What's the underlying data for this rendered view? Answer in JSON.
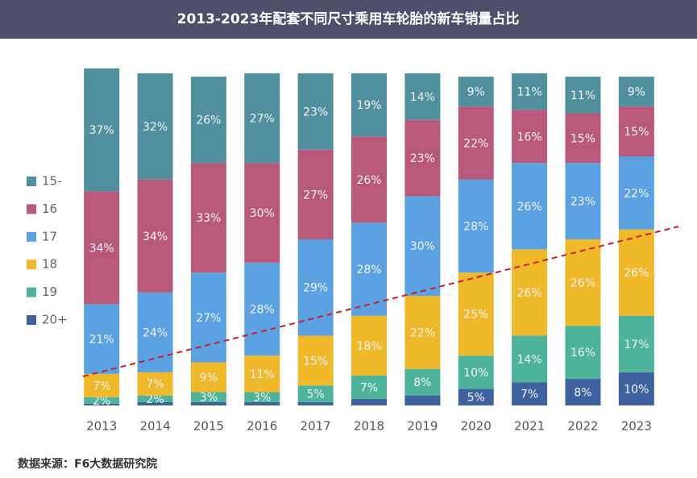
{
  "chart_data": {
    "type": "bar",
    "stacked": true,
    "title": "2013-2023年配套不同尺寸乘用车轮胎的新车销量占比",
    "source": "数据来源：F6大数据研究院",
    "categories": [
      "2013",
      "2014",
      "2015",
      "2016",
      "2017",
      "2018",
      "2019",
      "2020",
      "2021",
      "2022",
      "2023"
    ],
    "ylim": [
      0,
      100
    ],
    "series": [
      {
        "name": "20+",
        "color": "#3e62a0",
        "values": [
          0.5,
          1,
          1,
          1,
          1,
          2,
          3,
          5,
          7,
          8,
          10
        ],
        "value_labels": [
          null,
          null,
          null,
          null,
          null,
          null,
          null,
          "5%",
          "7%",
          "8%",
          "10%"
        ]
      },
      {
        "name": "19",
        "color": "#4db39a",
        "values": [
          2,
          2,
          3,
          3,
          5,
          7,
          8,
          10,
          14,
          16,
          17
        ],
        "value_labels": [
          "2%",
          "2%",
          "3%",
          "3%",
          "5%",
          "7%",
          "8%",
          "10%",
          "14%",
          "16%",
          "17%"
        ]
      },
      {
        "name": "18",
        "color": "#f0b92a",
        "values": [
          7,
          7,
          9,
          11,
          15,
          18,
          22,
          25,
          26,
          26,
          26
        ],
        "value_labels": [
          "7%",
          "7%",
          "9%",
          "11%",
          "15%",
          "18%",
          "22%",
          "25%",
          "26%",
          "26%",
          "26%"
        ]
      },
      {
        "name": "17",
        "color": "#5aa2e2",
        "values": [
          21,
          24,
          27,
          28,
          29,
          28,
          30,
          28,
          26,
          23,
          22
        ],
        "value_labels": [
          "21%",
          "24%",
          "27%",
          "28%",
          "29%",
          "28%",
          "30%",
          "28%",
          "26%",
          "23%",
          "22%"
        ]
      },
      {
        "name": "16",
        "color": "#b8587a",
        "values": [
          34,
          34,
          33,
          30,
          27,
          26,
          23,
          22,
          16,
          15,
          15
        ],
        "value_labels": [
          "34%",
          "34%",
          "33%",
          "30%",
          "27%",
          "26%",
          "23%",
          "22%",
          "16%",
          "15%",
          "15%"
        ]
      },
      {
        "name": "15-",
        "color": "#4f8f9e",
        "values": [
          37,
          32,
          26,
          27,
          23,
          19,
          14,
          9,
          11,
          11,
          9
        ],
        "value_labels": [
          "37%",
          "32%",
          "26%",
          "27%",
          "23%",
          "19%",
          "14%",
          "9%",
          "11%",
          "11%",
          "9%"
        ]
      }
    ]
  }
}
